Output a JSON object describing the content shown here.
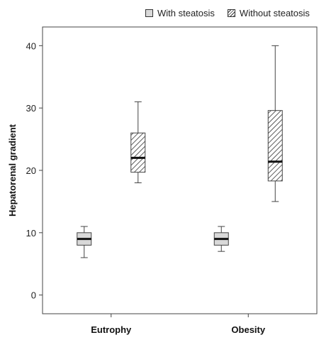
{
  "chart_data": {
    "type": "boxplot",
    "title": "",
    "xlabel": "",
    "ylabel": "Hepatorenal  gradient",
    "ylim": [
      -3,
      43
    ],
    "yticks": [
      0,
      10,
      20,
      30,
      40
    ],
    "categories": [
      "Eutrophy",
      "Obesity"
    ],
    "legend_position": "top",
    "grid": false,
    "series": [
      {
        "name": "With steatosis",
        "fill": "plain",
        "color": "#d9d9d9",
        "boxes": [
          {
            "category": "Eutrophy",
            "min": 6,
            "q1": 8,
            "median": 9,
            "q3": 10,
            "max": 11
          },
          {
            "category": "Obesity",
            "min": 7,
            "q1": 8,
            "median": 9,
            "q3": 10,
            "max": 11
          }
        ]
      },
      {
        "name": "Without steatosis",
        "fill": "hatched",
        "color": "#ffffff",
        "boxes": [
          {
            "category": "Eutrophy",
            "min": 18,
            "q1": 19.7,
            "median": 22,
            "q3": 26,
            "max": 31
          },
          {
            "category": "Obesity",
            "min": 15,
            "q1": 18.3,
            "median": 21.4,
            "q3": 29.6,
            "max": 40
          }
        ]
      }
    ]
  }
}
